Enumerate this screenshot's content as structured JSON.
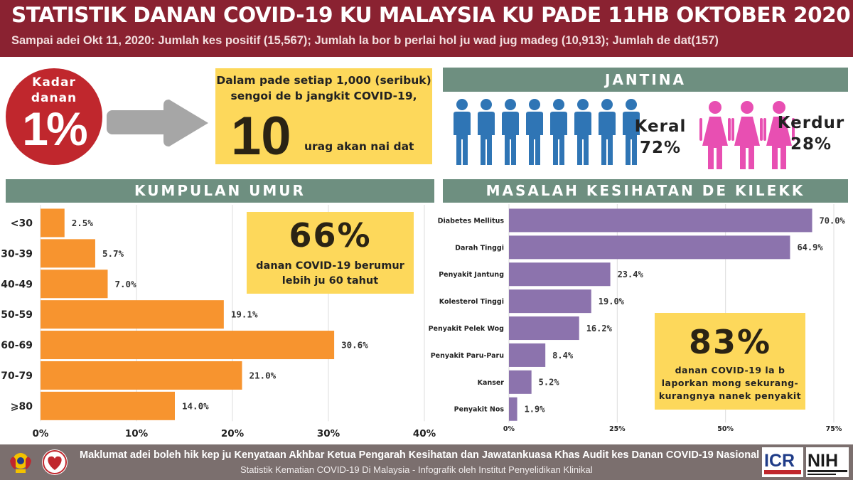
{
  "header": {
    "title": "STATISTIK DANAN COVID-19 KU MALAYSIA KU PADE 11HB OKTOBER 2020",
    "subtitle": "Sampai adei Okt 11, 2020: Jumlah kes positif (15,567); Jumlah la bor b perlai hol ju wad jug madeg (10,913); Jumlah de dat(157)"
  },
  "rate": {
    "label_line1": "Kadar",
    "label_line2": "danan",
    "value": "1%",
    "circle_color": "#c0272d"
  },
  "per_thousand": {
    "line1": "Dalam pade setiap 1,000 (seribuk)",
    "line2": "sengoi de b jangkit COVID-19,",
    "number": "10",
    "suffix": "urag akan nai dat"
  },
  "gender": {
    "section_title": "JANTINA",
    "male_label": "Keral",
    "male_pct": "72%",
    "male_value": 72,
    "female_label": "Kerdur",
    "female_pct": "28%",
    "female_value": 28,
    "male_icon": "man-icon",
    "female_icon": "woman-icon",
    "male_color": "#2f75b5",
    "female_color": "#e84fb2"
  },
  "age_section_title": "KUMPULAN UMUR",
  "health_section_title": "MASALAH KESIHATAN DE KILEKK",
  "callout_66": {
    "value": "66%",
    "line1": "danan COVID-19 berumur",
    "line2": "lebih ju 60 tahut"
  },
  "callout_83": {
    "value": "83%",
    "line1": "danan COVID-19 la b",
    "line2": "laporkan mong sekurang-",
    "line3": "kurangnya nanek penyakit"
  },
  "chart_data": [
    {
      "type": "bar",
      "orientation": "horizontal",
      "title": "KUMPULAN UMUR",
      "categories": [
        "<30",
        "30-39",
        "40-49",
        "50-59",
        "60-69",
        "70-79",
        "⩾80"
      ],
      "values": [
        2.5,
        5.7,
        7.0,
        19.1,
        30.6,
        21.0,
        14.0
      ],
      "value_labels": [
        "2.5%",
        "5.7%",
        "7.0%",
        "19.1%",
        "30.6%",
        "21.0%",
        "14.0%"
      ],
      "xlim": [
        0,
        40
      ],
      "xticks": [
        "0%",
        "10%",
        "20%",
        "30%",
        "40%"
      ],
      "xtick_values": [
        0,
        10,
        20,
        30,
        40
      ],
      "grid": true,
      "color": "#f7942f"
    },
    {
      "type": "bar",
      "orientation": "horizontal",
      "title": "MASALAH KESIHATAN DE KILEKK",
      "categories": [
        "Diabetes Mellitus",
        "Darah Tinggi",
        "Penyakit Jantung",
        "Kolesterol Tinggi",
        "Penyakit Pelek Wog",
        "Penyakit Paru-Paru",
        "Kanser",
        "Penyakit Nos"
      ],
      "values": [
        70.0,
        64.9,
        23.4,
        19.0,
        16.2,
        8.4,
        5.2,
        1.9
      ],
      "value_labels": [
        "70.0%",
        "64.9%",
        "23.4%",
        "19.0%",
        "16.2%",
        "8.4%",
        "5.2%",
        "1.9%"
      ],
      "xlim": [
        0,
        75
      ],
      "xticks": [
        "0%",
        "25%",
        "50%",
        "75%"
      ],
      "xtick_values": [
        0,
        25,
        50,
        75
      ],
      "grid": true,
      "color": "#8c73ad"
    }
  ],
  "footer": {
    "line1": "Maklumat adei boleh hik kep ju Kenyataan Akhbar Ketua Pengarah Kesihatan dan Jawatankuasa Khas Audit kes Danan COVID-19 Nasional",
    "line2": "Statistik Kematian COVID-19 Di Malaysia -  Infografik oleh Institut Penyelidikan Klinikal",
    "logo_icr": "ICR",
    "logo_nih": "NIH"
  }
}
